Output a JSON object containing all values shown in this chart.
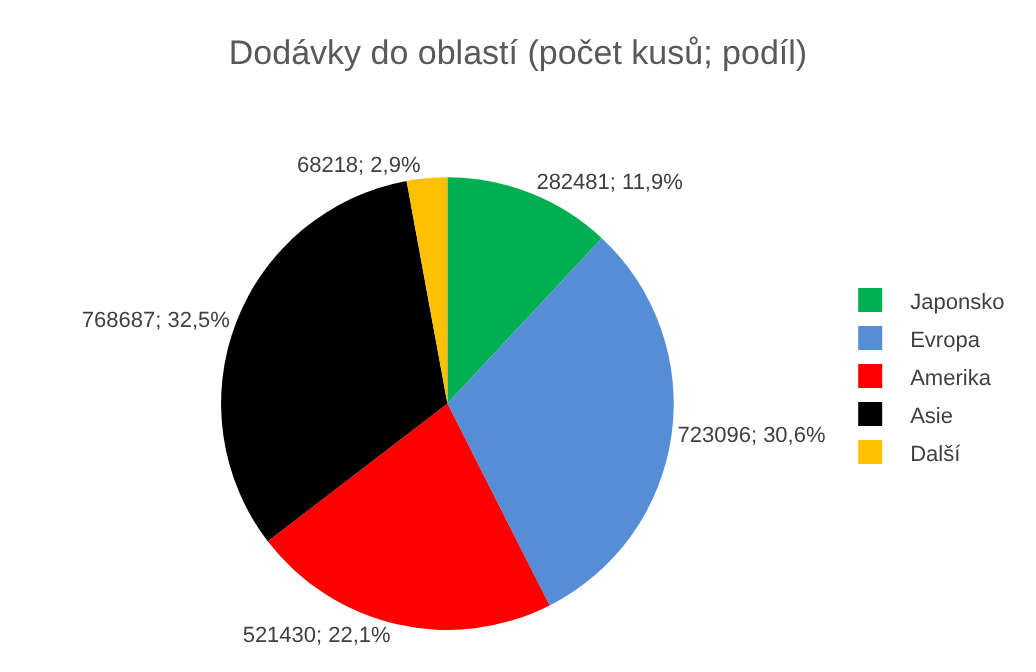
{
  "chart_data": {
    "type": "pie",
    "title": "Dodávky do oblastí (počet kusů; podíl)",
    "categories": [
      "Japonsko",
      "Evropa",
      "Amerika",
      "Asie",
      "Další"
    ],
    "values": [
      282481,
      723096,
      521430,
      768687,
      68218
    ],
    "colors": [
      "#00b050",
      "#558ed5",
      "#ff0000",
      "#000000",
      "#ffc000"
    ],
    "value_labels": [
      "282481; 11,9%",
      "723096; 30,6%",
      "521430; 22,1%",
      "768687; 32,5%",
      "68218; 2,9%"
    ],
    "legend": "right"
  }
}
